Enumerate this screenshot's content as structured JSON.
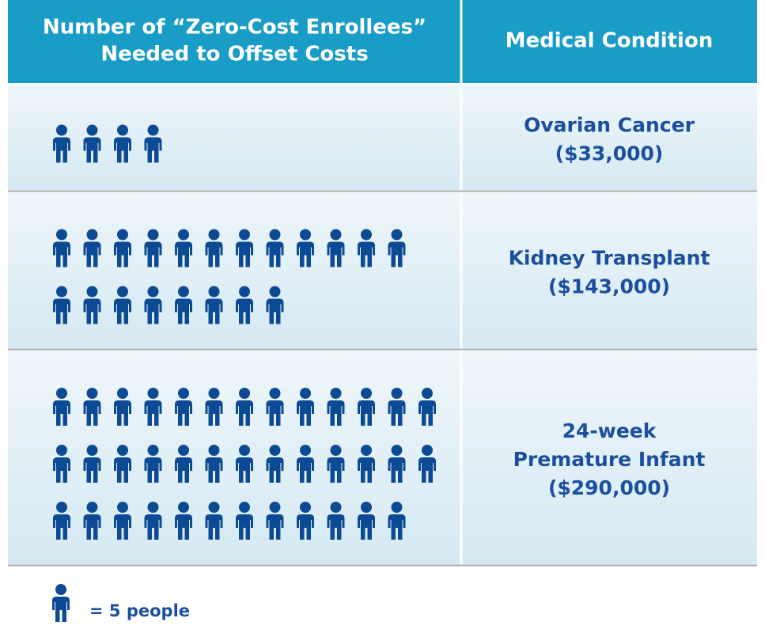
{
  "chart_data": {
    "type": "pictogram",
    "headers": [
      [
        "Number of “Zero-Cost Enrollees”",
        "Needed to Offset Costs"
      ],
      [
        "Medical Condition"
      ]
    ],
    "rows": [
      {
        "label_lines": [
          "Ovarian Cancer",
          "($33,000)"
        ],
        "value": 20
      },
      {
        "label_lines": [
          "Kidney Transplant",
          "($143,000)"
        ],
        "value": 100
      },
      {
        "label_lines": [
          "24-week",
          "Premature Infant",
          "($290,000)"
        ],
        "value": 190
      }
    ],
    "legend": {
      "value": 5,
      "label": "= 5 people"
    },
    "header_color": "#199cc5",
    "icon_color": "#0c4a93",
    "text_color": "#1b4f9d"
  }
}
